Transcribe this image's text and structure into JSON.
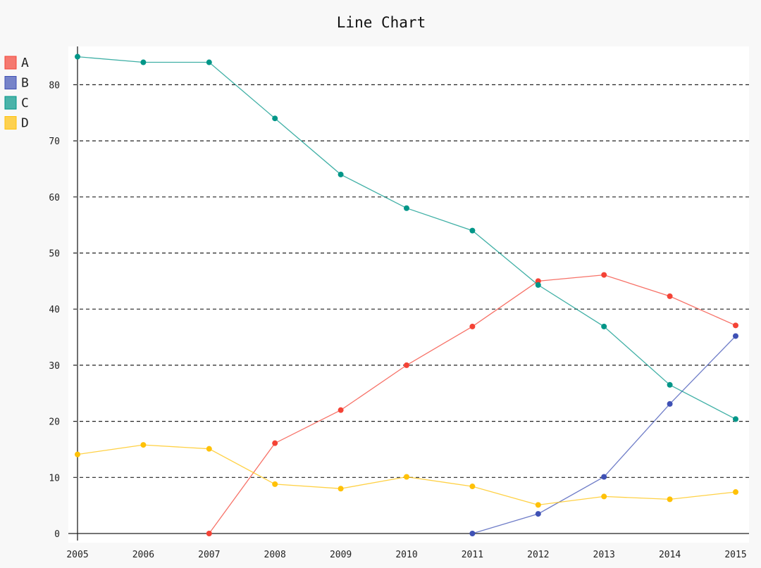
{
  "chart_data": {
    "type": "line",
    "title": "Line Chart",
    "xlabel": "",
    "ylabel": "",
    "x": [
      "2005",
      "2006",
      "2007",
      "2008",
      "2009",
      "2010",
      "2011",
      "2012",
      "2013",
      "2014",
      "2015"
    ],
    "y_ticks": [
      0,
      10,
      20,
      30,
      40,
      50,
      60,
      70,
      80
    ],
    "ylim": [
      0,
      86
    ],
    "grid": "horizontal dashed",
    "legend_position": "top-left",
    "series": [
      {
        "name": "A",
        "color": "#F44336",
        "values": [
          null,
          null,
          0,
          16.1,
          22,
          30,
          36.9,
          45,
          46.1,
          42.3,
          37.1
        ]
      },
      {
        "name": "B",
        "color": "#3F51B5",
        "values": [
          null,
          null,
          null,
          null,
          null,
          null,
          0,
          3.5,
          10.1,
          23.1,
          35.2
        ]
      },
      {
        "name": "C",
        "color": "#009688",
        "values": [
          85,
          84,
          84,
          74,
          64,
          58,
          54,
          44.3,
          36.9,
          26.5,
          20.4
        ]
      },
      {
        "name": "D",
        "color": "#FFC107",
        "values": [
          14.1,
          15.8,
          15.1,
          8.8,
          8,
          10.1,
          8.4,
          5.1,
          6.6,
          6.1,
          7.4
        ]
      }
    ]
  }
}
